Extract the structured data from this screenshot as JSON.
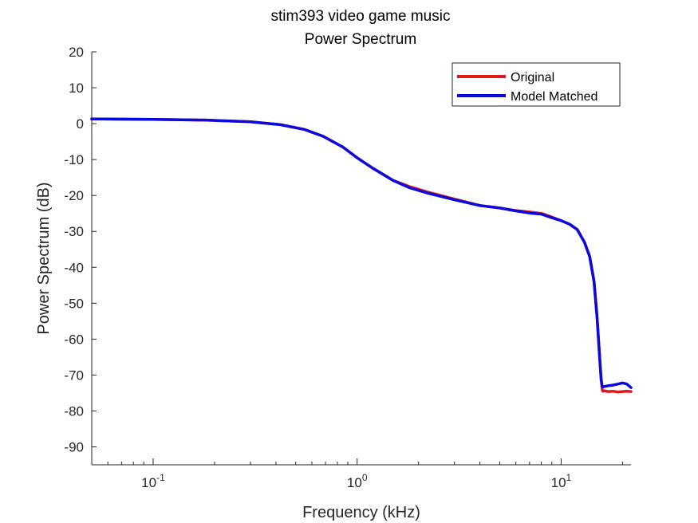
{
  "chart_data": {
    "type": "line",
    "title": "stim393 video game music",
    "subtitle": "Power Spectrum",
    "xlabel": "Frequency (kHz)",
    "ylabel": "Power Spectrum (dB)",
    "x_scale": "log",
    "xlim": [
      0.05,
      22
    ],
    "ylim": [
      -95,
      20
    ],
    "grid": false,
    "legend_position": "top-right",
    "x_ticks": [
      {
        "value": 0.1,
        "base": "10",
        "exp": "-1"
      },
      {
        "value": 1,
        "base": "10",
        "exp": "0"
      },
      {
        "value": 10,
        "base": "10",
        "exp": "1"
      }
    ],
    "y_ticks": [
      20,
      10,
      0,
      -10,
      -20,
      -30,
      -40,
      -50,
      -60,
      -70,
      -80,
      -90
    ],
    "y_tick_labels": [
      "20",
      "10",
      "0",
      "-10",
      "-20",
      "-30",
      "-40",
      "-50",
      "-60",
      "-70",
      "-80",
      "-90"
    ],
    "series": [
      {
        "name": "Original",
        "color": "#e31a1c",
        "x": [
          0.05,
          0.1,
          0.18,
          0.3,
          0.42,
          0.55,
          0.68,
          0.85,
          1.0,
          1.2,
          1.5,
          1.8,
          2.2,
          3.0,
          4.0,
          5.0,
          6.0,
          7.0,
          8.0,
          9.0,
          10.0,
          11.0,
          12.0,
          13.0,
          13.8,
          14.5,
          15.0,
          15.4,
          15.7,
          15.9,
          16.0,
          16.3,
          17.0,
          18.0,
          19.0,
          20.0,
          21.0,
          22.0
        ],
        "y": [
          1.3,
          1.2,
          1.0,
          0.5,
          -0.3,
          -1.6,
          -3.5,
          -6.5,
          -9.5,
          -12.5,
          -15.8,
          -17.5,
          -19.0,
          -21.0,
          -22.8,
          -23.5,
          -24.2,
          -24.6,
          -25.0,
          -26.0,
          -27.0,
          -28.0,
          -29.5,
          -33.0,
          -37.0,
          -44.0,
          -54.0,
          -64.0,
          -71.0,
          -74.0,
          -74.5,
          -74.4,
          -74.6,
          -74.5,
          -74.7,
          -74.6,
          -74.5,
          -74.6
        ]
      },
      {
        "name": "Model Matched",
        "color": "#0a0adf",
        "x": [
          0.05,
          0.1,
          0.18,
          0.3,
          0.42,
          0.55,
          0.68,
          0.85,
          1.0,
          1.2,
          1.5,
          1.8,
          2.2,
          3.0,
          4.0,
          5.0,
          6.0,
          7.0,
          8.0,
          9.0,
          10.0,
          11.0,
          12.0,
          13.0,
          13.8,
          14.5,
          15.0,
          15.4,
          15.7,
          15.9,
          16.0,
          16.3,
          17.0,
          18.0,
          19.0,
          20.0,
          21.0,
          22.0
        ],
        "y": [
          1.3,
          1.2,
          1.0,
          0.5,
          -0.3,
          -1.6,
          -3.5,
          -6.5,
          -9.5,
          -12.5,
          -15.8,
          -17.8,
          -19.3,
          -21.2,
          -22.8,
          -23.5,
          -24.3,
          -24.9,
          -25.2,
          -26.2,
          -27.0,
          -28.0,
          -29.5,
          -33.0,
          -37.0,
          -44.0,
          -54.0,
          -64.0,
          -71.0,
          -73.2,
          -73.3,
          -73.2,
          -73.0,
          -72.8,
          -72.5,
          -72.2,
          -72.5,
          -73.5
        ]
      }
    ]
  }
}
